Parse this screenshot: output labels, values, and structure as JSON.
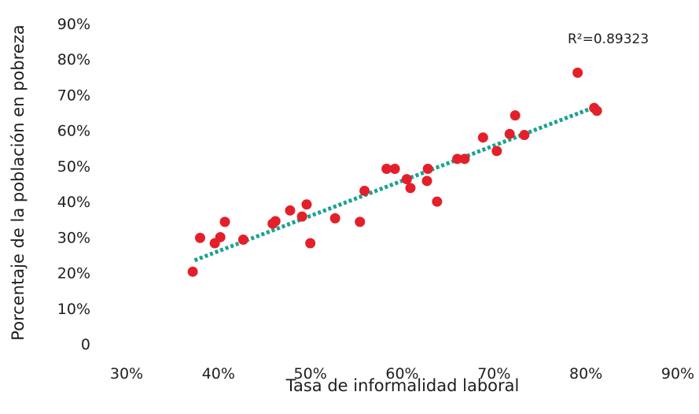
{
  "chart_data": {
    "type": "scatter",
    "xlabel": "Tasa de informalidad laboral",
    "ylabel": "Porcentaje de la población en pobreza",
    "xlim": [
      30,
      90
    ],
    "ylim": [
      0,
      90
    ],
    "x_ticks": [
      {
        "value": 30,
        "label": "30%"
      },
      {
        "value": 40,
        "label": "40%"
      },
      {
        "value": 50,
        "label": "50%"
      },
      {
        "value": 60,
        "label": "60%"
      },
      {
        "value": 70,
        "label": "70%"
      },
      {
        "value": 80,
        "label": "80%"
      },
      {
        "value": 90,
        "label": "90%"
      }
    ],
    "y_ticks": [
      {
        "value": 0,
        "label": "0"
      },
      {
        "value": 10,
        "label": "10%"
      },
      {
        "value": 20,
        "label": "20%"
      },
      {
        "value": 30,
        "label": "30%"
      },
      {
        "value": 40,
        "label": "40%"
      },
      {
        "value": 50,
        "label": "50%"
      },
      {
        "value": 60,
        "label": "60%"
      },
      {
        "value": 70,
        "label": "70%"
      },
      {
        "value": 80,
        "label": "80%"
      },
      {
        "value": 90,
        "label": "90%"
      }
    ],
    "grid": false,
    "point_color": "#e3202a",
    "trendline": {
      "type": "linear",
      "from": {
        "x": 37.4,
        "y": 23.5
      },
      "to": {
        "x": 80.9,
        "y": 66.5
      },
      "color": "#1aa38f",
      "style": "dotted"
    },
    "annotation": {
      "text": "R²=0.89323"
    },
    "points": [
      {
        "x": 37.2,
        "y": 20.3
      },
      {
        "x": 38.0,
        "y": 29.8
      },
      {
        "x": 39.6,
        "y": 28.3
      },
      {
        "x": 40.2,
        "y": 30.0
      },
      {
        "x": 40.7,
        "y": 34.3
      },
      {
        "x": 42.7,
        "y": 29.3
      },
      {
        "x": 45.9,
        "y": 33.8
      },
      {
        "x": 46.2,
        "y": 34.5
      },
      {
        "x": 47.8,
        "y": 37.5
      },
      {
        "x": 49.1,
        "y": 35.8
      },
      {
        "x": 49.6,
        "y": 39.2
      },
      {
        "x": 50.0,
        "y": 28.3
      },
      {
        "x": 52.7,
        "y": 35.3
      },
      {
        "x": 55.4,
        "y": 34.3
      },
      {
        "x": 55.9,
        "y": 43.0
      },
      {
        "x": 58.3,
        "y": 49.2
      },
      {
        "x": 59.2,
        "y": 49.2
      },
      {
        "x": 60.5,
        "y": 46.3
      },
      {
        "x": 60.9,
        "y": 43.8
      },
      {
        "x": 62.7,
        "y": 45.8
      },
      {
        "x": 62.8,
        "y": 49.2
      },
      {
        "x": 63.8,
        "y": 40.0
      },
      {
        "x": 66.0,
        "y": 52.0
      },
      {
        "x": 66.8,
        "y": 52.0
      },
      {
        "x": 68.8,
        "y": 58.0
      },
      {
        "x": 70.3,
        "y": 54.2
      },
      {
        "x": 71.7,
        "y": 59.0
      },
      {
        "x": 72.3,
        "y": 64.2
      },
      {
        "x": 73.3,
        "y": 58.7
      },
      {
        "x": 79.1,
        "y": 76.2
      },
      {
        "x": 80.9,
        "y": 66.3
      },
      {
        "x": 81.2,
        "y": 65.5
      }
    ]
  }
}
